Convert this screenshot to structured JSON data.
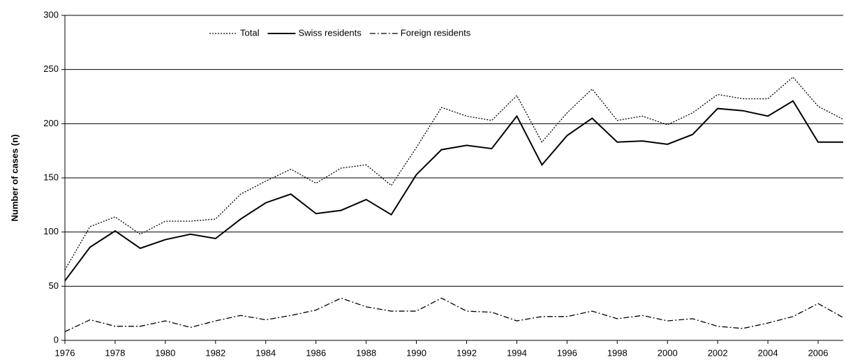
{
  "chart_data": {
    "type": "line",
    "y_label": "Number of  cases (n)",
    "x": [
      1976,
      1977,
      1978,
      1979,
      1980,
      1981,
      1982,
      1983,
      1984,
      1985,
      1986,
      1987,
      1988,
      1989,
      1990,
      1991,
      1992,
      1993,
      1994,
      1995,
      1996,
      1997,
      1998,
      1999,
      2000,
      2001,
      2002,
      2003,
      2004,
      2005,
      2006,
      2007
    ],
    "series": [
      {
        "name": "Total",
        "color": "#000000",
        "dash": "dotted",
        "values": [
          65,
          105,
          114,
          98,
          110,
          110,
          112,
          135,
          147,
          158,
          145,
          159,
          162,
          143,
          178,
          215,
          207,
          203,
          226,
          183,
          210,
          232,
          203,
          207,
          199,
          210,
          227,
          223,
          223,
          243,
          216,
          204
        ]
      },
      {
        "name": "Swiss residents",
        "color": "#000000",
        "dash": "solid",
        "values": [
          55,
          86,
          101,
          85,
          93,
          98,
          94,
          112,
          127,
          135,
          117,
          120,
          130,
          116,
          153,
          176,
          180,
          177,
          207,
          162,
          189,
          205,
          183,
          184,
          181,
          190,
          214,
          212,
          207,
          221,
          183,
          183
        ]
      },
      {
        "name": "Foreign residents",
        "color": "#000000",
        "dash": "dashdot",
        "values": [
          8,
          19,
          13,
          13,
          18,
          12,
          18,
          23,
          19,
          23,
          28,
          39,
          31,
          27,
          27,
          39,
          27,
          26,
          18,
          22,
          22,
          27,
          20,
          23,
          18,
          20,
          13,
          11,
          16,
          22,
          34,
          21
        ]
      }
    ],
    "xlim": [
      1976,
      2007
    ],
    "xticks": [
      1976,
      1978,
      1980,
      1982,
      1984,
      1986,
      1988,
      1990,
      1992,
      1994,
      1996,
      1998,
      2000,
      2002,
      2004,
      2006
    ],
    "ylim": [
      0,
      300
    ],
    "yticks": [
      0,
      50,
      100,
      150,
      200,
      250,
      300
    ],
    "grid": true,
    "legend": "top"
  }
}
